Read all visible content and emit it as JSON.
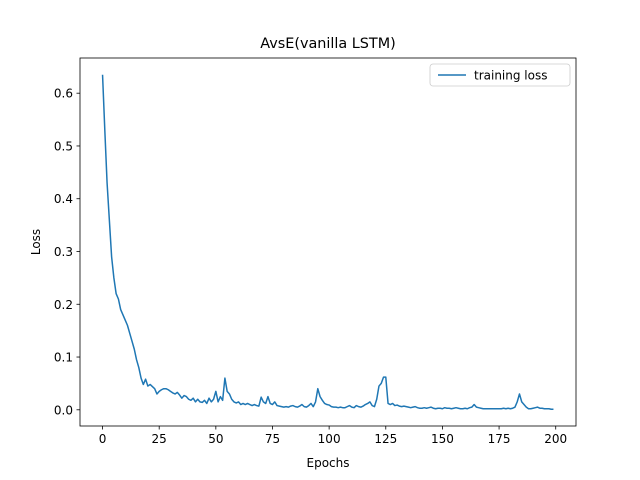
{
  "chart_data": {
    "type": "line",
    "title": "AvsE(vanilla LSTM)",
    "xlabel": "Epochs",
    "ylabel": "Loss",
    "x": [
      0,
      1,
      2,
      3,
      4,
      5,
      6,
      7,
      8,
      9,
      10,
      11,
      12,
      13,
      14,
      15,
      16,
      17,
      18,
      19,
      20,
      21,
      22,
      23,
      24,
      25,
      26,
      27,
      28,
      29,
      30,
      31,
      32,
      33,
      34,
      35,
      36,
      37,
      38,
      39,
      40,
      41,
      42,
      43,
      44,
      45,
      46,
      47,
      48,
      49,
      50,
      51,
      52,
      53,
      54,
      55,
      56,
      57,
      58,
      59,
      60,
      61,
      62,
      63,
      64,
      65,
      66,
      67,
      68,
      69,
      70,
      71,
      72,
      73,
      74,
      75,
      76,
      77,
      78,
      79,
      80,
      81,
      82,
      83,
      84,
      85,
      86,
      87,
      88,
      89,
      90,
      91,
      92,
      93,
      94,
      95,
      96,
      97,
      98,
      99,
      100,
      101,
      102,
      103,
      104,
      105,
      106,
      107,
      108,
      109,
      110,
      111,
      112,
      113,
      114,
      115,
      116,
      117,
      118,
      119,
      120,
      121,
      122,
      123,
      124,
      125,
      126,
      127,
      128,
      129,
      130,
      131,
      132,
      133,
      134,
      135,
      136,
      137,
      138,
      139,
      140,
      141,
      142,
      143,
      144,
      145,
      146,
      147,
      148,
      149,
      150,
      151,
      152,
      153,
      154,
      155,
      156,
      157,
      158,
      159,
      160,
      161,
      162,
      163,
      164,
      165,
      166,
      167,
      168,
      169,
      170,
      171,
      172,
      173,
      174,
      175,
      176,
      177,
      178,
      179,
      180,
      181,
      182,
      183,
      184,
      185,
      186,
      187,
      188,
      189,
      190,
      191,
      192,
      193,
      194,
      195,
      196,
      197,
      198,
      199
    ],
    "series": [
      {
        "name": "training loss",
        "color": "#1f77b4",
        "values": [
          0.635,
          0.53,
          0.43,
          0.36,
          0.29,
          0.25,
          0.22,
          0.21,
          0.19,
          0.18,
          0.17,
          0.16,
          0.145,
          0.13,
          0.115,
          0.095,
          0.08,
          0.06,
          0.048,
          0.058,
          0.045,
          0.048,
          0.044,
          0.04,
          0.03,
          0.035,
          0.038,
          0.04,
          0.04,
          0.038,
          0.035,
          0.032,
          0.03,
          0.033,
          0.028,
          0.022,
          0.027,
          0.025,
          0.02,
          0.018,
          0.022,
          0.015,
          0.02,
          0.015,
          0.014,
          0.018,
          0.012,
          0.022,
          0.015,
          0.02,
          0.035,
          0.015,
          0.025,
          0.018,
          0.06,
          0.035,
          0.03,
          0.02,
          0.015,
          0.013,
          0.015,
          0.01,
          0.012,
          0.01,
          0.012,
          0.01,
          0.008,
          0.01,
          0.008,
          0.007,
          0.024,
          0.015,
          0.012,
          0.025,
          0.012,
          0.01,
          0.015,
          0.008,
          0.007,
          0.006,
          0.005,
          0.006,
          0.005,
          0.007,
          0.008,
          0.006,
          0.005,
          0.007,
          0.01,
          0.006,
          0.005,
          0.008,
          0.012,
          0.006,
          0.015,
          0.04,
          0.025,
          0.018,
          0.012,
          0.01,
          0.009,
          0.006,
          0.005,
          0.005,
          0.004,
          0.005,
          0.004,
          0.004,
          0.006,
          0.008,
          0.005,
          0.004,
          0.008,
          0.006,
          0.005,
          0.007,
          0.01,
          0.012,
          0.015,
          0.008,
          0.006,
          0.02,
          0.045,
          0.05,
          0.062,
          0.062,
          0.012,
          0.01,
          0.012,
          0.008,
          0.009,
          0.007,
          0.006,
          0.007,
          0.006,
          0.005,
          0.004,
          0.005,
          0.006,
          0.004,
          0.003,
          0.003,
          0.004,
          0.003,
          0.004,
          0.005,
          0.003,
          0.002,
          0.003,
          0.003,
          0.002,
          0.004,
          0.003,
          0.003,
          0.002,
          0.003,
          0.004,
          0.003,
          0.002,
          0.002,
          0.003,
          0.002,
          0.004,
          0.005,
          0.01,
          0.005,
          0.004,
          0.003,
          0.002,
          0.002,
          0.002,
          0.002,
          0.002,
          0.002,
          0.002,
          0.002,
          0.002,
          0.003,
          0.002,
          0.003,
          0.002,
          0.003,
          0.005,
          0.015,
          0.03,
          0.015,
          0.01,
          0.005,
          0.002,
          0.002,
          0.003,
          0.004,
          0.005,
          0.003,
          0.003,
          0.002,
          0.002,
          0.002,
          0.001,
          0.001
        ]
      }
    ],
    "xlim": [
      -9.95,
      208.95
    ],
    "ylim": [
      -0.0307,
      0.6667
    ],
    "xticks": [
      0,
      25,
      50,
      75,
      100,
      125,
      150,
      175,
      200
    ],
    "yticks": [
      {
        "value": 0,
        "label": "0.0"
      },
      0.1,
      0.2,
      0.3,
      0.4,
      0.5,
      0.6
    ],
    "grid": false,
    "legend": "upper right"
  }
}
